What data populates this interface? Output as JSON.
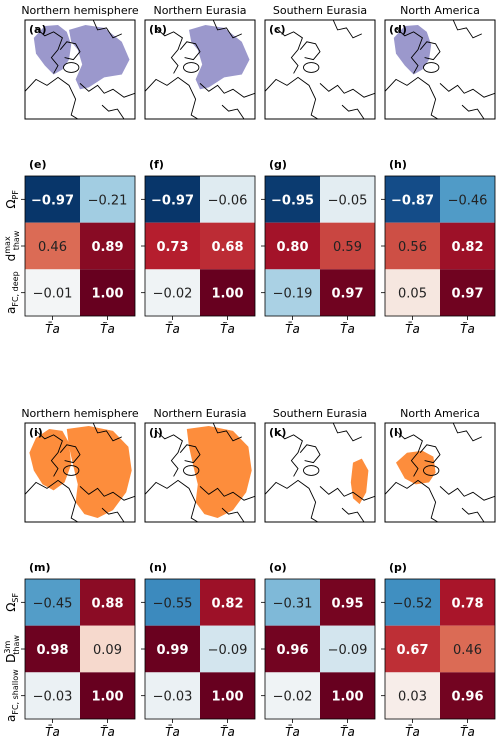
{
  "figure": {
    "region_titles": [
      "Northern hemisphere",
      "Northern Eurasia",
      "Southern Eurasia",
      "North America"
    ],
    "map_rows": [
      {
        "labels": [
          "(a)",
          "(b)",
          "(c)",
          "(d)"
        ],
        "fill_color": "#9b98cc"
      },
      {
        "labels": [
          "(i)",
          "(j)",
          "(k)",
          "(l)"
        ],
        "fill_color": "#fd8d3c"
      }
    ]
  },
  "chart_data": [
    {
      "type": "heatmap",
      "panel_labels": [
        "(e)",
        "(f)",
        "(g)",
        "(h)"
      ],
      "row_labels": [
        "Ω_PF",
        "d_thaw^max",
        "a_FC,deep"
      ],
      "col_labels": [
        "T̄a",
        "T̃a"
      ],
      "colormap": "RdBu_r",
      "vmin": -1,
      "vmax": 1,
      "panels": [
        {
          "region": "Northern hemisphere",
          "values": [
            [
              -0.97,
              -0.21
            ],
            [
              0.46,
              0.89
            ],
            [
              -0.01,
              1.0
            ]
          ]
        },
        {
          "region": "Northern Eurasia",
          "values": [
            [
              -0.97,
              -0.06
            ],
            [
              0.73,
              0.68
            ],
            [
              -0.02,
              1.0
            ]
          ]
        },
        {
          "region": "Southern Eurasia",
          "values": [
            [
              -0.95,
              -0.05
            ],
            [
              0.8,
              0.59
            ],
            [
              -0.19,
              0.97
            ]
          ]
        },
        {
          "region": "North America",
          "values": [
            [
              -0.87,
              -0.46
            ],
            [
              0.56,
              0.82
            ],
            [
              0.05,
              0.97
            ]
          ]
        }
      ]
    },
    {
      "type": "heatmap",
      "panel_labels": [
        "(m)",
        "(n)",
        "(o)",
        "(p)"
      ],
      "row_labels": [
        "Ω_SF",
        "D_thaw^3m",
        "a_FC,shallow"
      ],
      "col_labels": [
        "T̄a",
        "T̃a"
      ],
      "colormap": "RdBu_r",
      "vmin": -1,
      "vmax": 1,
      "panels": [
        {
          "region": "Northern hemisphere",
          "values": [
            [
              -0.45,
              0.88
            ],
            [
              0.98,
              0.09
            ],
            [
              -0.03,
              1.0
            ]
          ]
        },
        {
          "region": "Northern Eurasia",
          "values": [
            [
              -0.55,
              0.82
            ],
            [
              0.99,
              -0.09
            ],
            [
              -0.03,
              1.0
            ]
          ]
        },
        {
          "region": "Southern Eurasia",
          "values": [
            [
              -0.31,
              0.95
            ],
            [
              0.96,
              -0.09
            ],
            [
              -0.02,
              1.0
            ]
          ]
        },
        {
          "region": "North America",
          "values": [
            [
              -0.52,
              0.78
            ],
            [
              0.67,
              0.46
            ],
            [
              0.03,
              0.96
            ]
          ]
        }
      ]
    }
  ]
}
